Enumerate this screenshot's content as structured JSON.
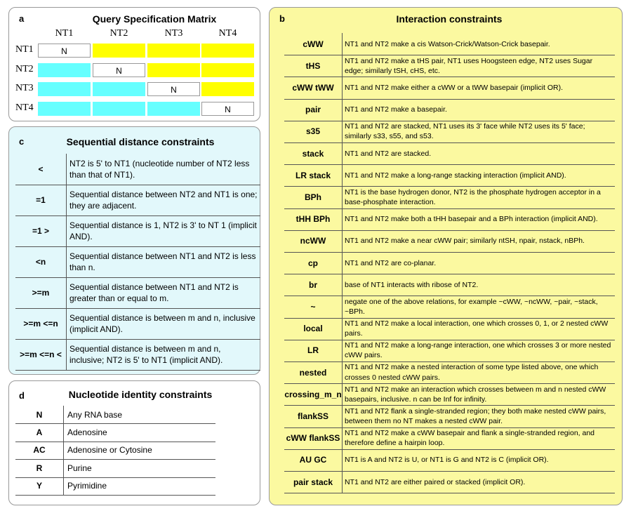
{
  "panels": {
    "a": {
      "label": "a",
      "title": "Query Specification Matrix",
      "columns": [
        "NT1",
        "NT2",
        "NT3",
        "NT4"
      ],
      "rows": [
        {
          "label": "NT1",
          "diagonal": "N"
        },
        {
          "label": "NT2",
          "diagonal": "N"
        },
        {
          "label": "NT3",
          "diagonal": "N"
        },
        {
          "label": "NT4",
          "diagonal": "N"
        }
      ]
    },
    "c": {
      "label": "c",
      "title": "Sequential distance constraints",
      "rows": [
        [
          "<",
          "NT2 is 5' to NT1 (nucleotide number of NT2 less than that of NT1)."
        ],
        [
          "=1",
          "Sequential distance between NT2 and NT1 is one; they are adjacent."
        ],
        [
          "=1 >",
          "Sequential distance is 1, NT2 is 3' to NT 1 (implicit AND)."
        ],
        [
          "<n",
          "Sequential distance between NT1 and NT2 is less than n."
        ],
        [
          ">=m",
          "Sequential distance between NT1 and NT2 is greater than or equal to m."
        ],
        [
          ">=m <=n",
          "Sequential distance is between m and n, inclusive (implicit AND)."
        ],
        [
          ">=m <=n <",
          "Sequential distance is between m and n, inclusive; NT2 is 5' to NT1 (implicit AND)."
        ]
      ]
    },
    "d": {
      "label": "d",
      "title": "Nucleotide identity constraints",
      "rows": [
        [
          "N",
          "Any RNA base"
        ],
        [
          "A",
          "Adenosine"
        ],
        [
          "AC",
          "Adenosine or Cytosine"
        ],
        [
          "R",
          "Purine"
        ],
        [
          "Y",
          "Pyrimidine"
        ]
      ]
    },
    "b": {
      "label": "b",
      "title": "Interaction constraints",
      "rows": [
        [
          "cWW",
          "NT1 and NT2 make a cis Watson-Crick/Watson-Crick basepair."
        ],
        [
          "tHS",
          "NT1 and NT2 make a tHS pair, NT1 uses Hoogsteen edge, NT2 uses Sugar edge; similarly tSH, cHS, etc."
        ],
        [
          "cWW tWW",
          "NT1 and NT2 make either a cWW or a tWW basepair (implicit OR)."
        ],
        [
          "pair",
          "NT1 and NT2 make a basepair."
        ],
        [
          "s35",
          "NT1 and NT2 are stacked, NT1 uses its 3' face while NT2 uses its 5' face; similarly s33, s55, and s53."
        ],
        [
          "stack",
          "NT1 and NT2 are stacked."
        ],
        [
          "LR stack",
          "NT1 and NT2 make a long-range stacking interaction (implicit AND)."
        ],
        [
          "BPh",
          "NT1 is the base hydrogen donor, NT2 is the phosphate hydrogen acceptor in a base-phosphate interaction."
        ],
        [
          "tHH BPh",
          "NT1 and NT2 make both a tHH basepair and a BPh interaction (implicit AND)."
        ],
        [
          "ncWW",
          "NT1 and NT2 make a near cWW pair; similarly ntSH, npair, nstack, nBPh."
        ],
        [
          "cp",
          "NT1 and NT2 are co-planar."
        ],
        [
          "br",
          "base of NT1 interacts with ribose of NT2."
        ],
        [
          "~",
          "negate one of the above relations, for example ~cWW, ~ncWW, ~pair, ~stack, ~BPh."
        ],
        [
          "local",
          "NT1 and NT2 make a local interaction, one which crosses 0, 1, or 2 nested cWW pairs."
        ],
        [
          "LR",
          "NT1 and NT2 make a long-range interaction, one which crosses 3 or more nested cWW pairs."
        ],
        [
          "nested",
          "NT1 and NT2 make a nested interaction of some type listed above, one which crosses 0 nested cWW pairs."
        ],
        [
          "crossing_m_n",
          "NT1 and NT2 make an interaction which crosses between m and n nested cWW basepairs, inclusive.  n can be Inf for infinity."
        ],
        [
          "flankSS",
          "NT1 and NT2 flank a single-stranded region; they both make nested cWW pairs, between them no NT makes a nested cWW pair."
        ],
        [
          "cWW flankSS",
          "NT1 and NT2 make a cWW basepair and flank a single-stranded region, and therefore define a hairpin loop."
        ],
        [
          "AU GC",
          "NT1 is A and NT2 is U, or NT1 is G and NT2 is C (implicit OR)."
        ],
        [
          "pair stack",
          "NT1 and NT2 are either paired or stacked (implicit OR)."
        ]
      ]
    }
  }
}
